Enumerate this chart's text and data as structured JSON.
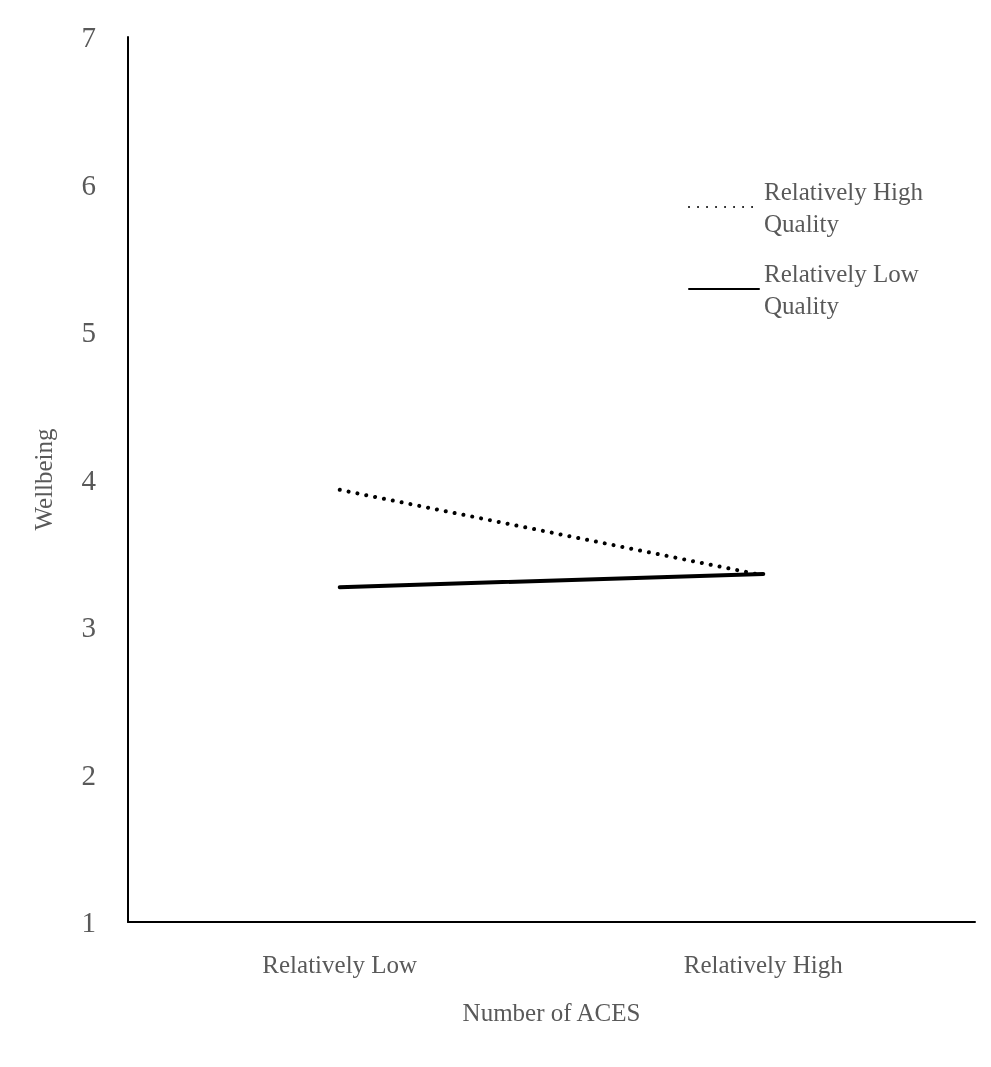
{
  "chart_data": {
    "type": "line",
    "xlabel": "Number of ACES",
    "ylabel": "Wellbeing",
    "categories": [
      "Relatively Low",
      "Relatively High"
    ],
    "series": [
      {
        "name": "Relatively High Quality",
        "color": "#000000",
        "line_style": "dotted",
        "values": [
          3.93,
          3.35
        ]
      },
      {
        "name": "Relatively Low Quality",
        "color": "#000000",
        "line_style": "solid",
        "values": [
          3.27,
          3.36
        ]
      }
    ],
    "ylim": [
      1,
      7
    ],
    "yticks": [
      1,
      2,
      3,
      4,
      5,
      6,
      7
    ],
    "grid": false,
    "legend": "top right",
    "marker": "none"
  }
}
